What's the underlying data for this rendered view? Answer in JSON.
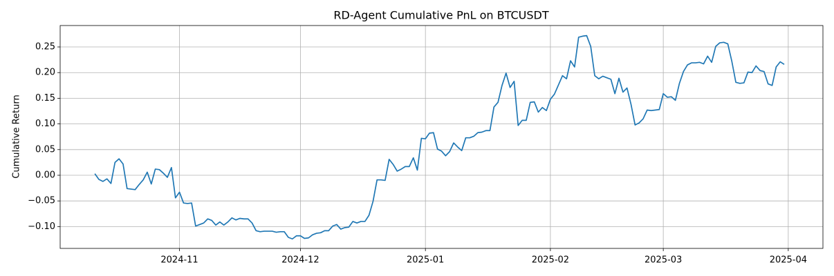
{
  "chart_data": {
    "type": "line",
    "title": "RD-Agent Cumulative PnL on BTCUSDT",
    "y_label": "Cumulative Return",
    "categories": [
      null,
      null,
      null,
      null,
      null,
      null,
      null,
      null,
      null,
      null,
      null,
      null,
      null,
      null,
      null,
      null,
      null,
      null,
      null,
      null,
      null,
      "2024-11",
      null,
      null,
      null,
      null,
      null,
      null,
      null,
      null,
      null,
      null,
      null,
      null,
      null,
      null,
      null,
      null,
      null,
      null,
      null,
      null,
      null,
      null,
      null,
      null,
      null,
      null,
      null,
      null,
      null,
      "2024-12",
      null,
      null,
      null,
      null,
      null,
      null,
      null,
      null,
      null,
      null,
      null,
      null,
      null,
      null,
      null,
      null,
      null,
      null,
      null,
      null,
      null,
      null,
      null,
      null,
      null,
      null,
      null,
      null,
      null,
      null,
      "2025-01",
      null,
      null,
      null,
      null,
      null,
      null,
      null,
      null,
      null,
      null,
      null,
      null,
      null,
      null,
      null,
      null,
      null,
      null,
      null,
      null,
      null,
      null,
      null,
      null,
      null,
      null,
      null,
      null,
      null,
      null,
      "2025-02",
      null,
      null,
      null,
      null,
      null,
      null,
      null,
      null,
      null,
      null,
      null,
      null,
      null,
      null,
      null,
      null,
      null,
      null,
      null,
      null,
      null,
      null,
      null,
      null,
      null,
      null,
      null,
      "2025-03",
      null,
      null,
      null,
      null,
      null,
      null,
      null,
      null,
      null,
      null,
      null,
      null,
      null,
      null,
      null,
      null,
      null,
      null,
      null,
      null,
      null,
      null,
      null,
      null,
      null,
      null,
      null,
      null,
      null,
      null,
      "2025-04"
    ],
    "series": [
      {
        "name": "RD-Agent",
        "color": "#1f77b4",
        "values": [
          0.003,
          -0.008,
          -0.012,
          -0.007,
          -0.016,
          0.025,
          0.032,
          0.022,
          -0.026,
          -0.027,
          -0.028,
          -0.018,
          -0.009,
          0.006,
          -0.017,
          0.012,
          0.011,
          0.004,
          -0.004,
          0.015,
          -0.044,
          -0.033,
          -0.054,
          -0.055,
          -0.054,
          -0.099,
          -0.096,
          -0.093,
          -0.085,
          -0.088,
          -0.097,
          -0.091,
          -0.097,
          -0.091,
          -0.083,
          -0.087,
          -0.084,
          -0.085,
          -0.085,
          -0.093,
          -0.108,
          -0.11,
          -0.109,
          -0.109,
          -0.109,
          -0.111,
          -0.11,
          -0.11,
          -0.121,
          -0.124,
          -0.118,
          -0.118,
          -0.123,
          -0.122,
          -0.116,
          -0.113,
          -0.112,
          -0.108,
          -0.108,
          -0.099,
          -0.096,
          -0.105,
          -0.102,
          -0.101,
          -0.09,
          -0.093,
          -0.09,
          -0.09,
          -0.078,
          -0.051,
          -0.009,
          -0.009,
          -0.01,
          0.031,
          0.021,
          0.008,
          0.012,
          0.017,
          0.017,
          0.034,
          0.01,
          0.072,
          0.071,
          0.082,
          0.083,
          0.051,
          0.047,
          0.038,
          0.046,
          0.063,
          0.055,
          0.048,
          0.073,
          0.073,
          0.076,
          0.083,
          0.084,
          0.087,
          0.087,
          0.133,
          0.142,
          0.175,
          0.199,
          0.171,
          0.183,
          0.097,
          0.107,
          0.107,
          0.142,
          0.143,
          0.123,
          0.132,
          0.126,
          0.148,
          0.158,
          0.176,
          0.194,
          0.188,
          0.223,
          0.211,
          0.269,
          0.271,
          0.272,
          0.251,
          0.194,
          0.188,
          0.193,
          0.19,
          0.187,
          0.159,
          0.189,
          0.162,
          0.17,
          0.138,
          0.098,
          0.102,
          0.11,
          0.127,
          0.126,
          0.127,
          0.128,
          0.159,
          0.152,
          0.153,
          0.146,
          0.179,
          0.202,
          0.215,
          0.219,
          0.219,
          0.22,
          0.217,
          0.232,
          0.22,
          0.251,
          0.258,
          0.259,
          0.256,
          0.222,
          0.181,
          0.179,
          0.18,
          0.201,
          0.2,
          0.213,
          0.204,
          0.202,
          0.178,
          0.175,
          0.211,
          0.221,
          0.216,
          null
        ]
      }
    ],
    "ylim": [
      -0.1425,
      0.2917
    ],
    "yticks": [
      {
        "value": -0.1,
        "label": "−0.10"
      },
      {
        "value": -0.05,
        "label": "−0.05"
      },
      {
        "value": 0,
        "label": "0.00"
      },
      {
        "value": 0.05,
        "label": "0.05"
      },
      {
        "value": 0.1,
        "label": "0.10"
      },
      {
        "value": 0.15,
        "label": "0.15"
      },
      {
        "value": 0.2,
        "label": "0.20"
      },
      {
        "value": 0.25,
        "label": "0.25"
      }
    ],
    "grid": true
  }
}
